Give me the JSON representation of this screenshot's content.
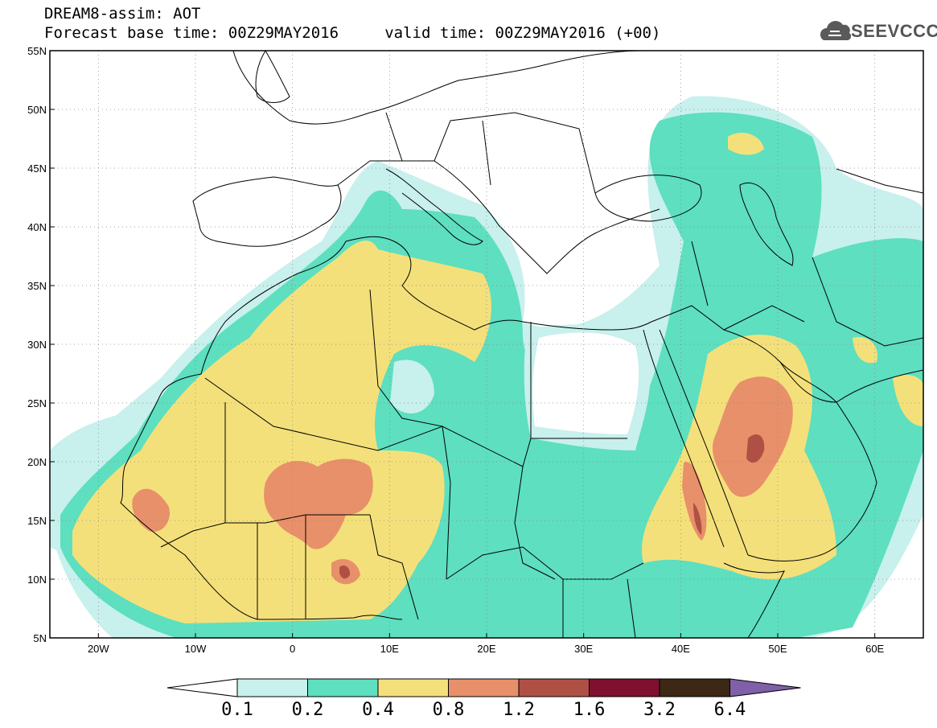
{
  "header": {
    "line1": "DREAM8-assim: AOT",
    "line2": "Forecast base time: 00Z29MAY2016     valid time: 00Z29MAY2016 (+00)"
  },
  "logo": {
    "text": "SEEVCCC",
    "icon": "cloud-icon",
    "color": "#5a5a5a"
  },
  "map": {
    "lon_range": [
      -25,
      65
    ],
    "lat_range": [
      5,
      55
    ],
    "lat_ticks": [
      "55N",
      "50N",
      "45N",
      "40N",
      "35N",
      "30N",
      "25N",
      "20N",
      "15N",
      "10N",
      "5N"
    ],
    "lon_ticks": [
      "20W",
      "10W",
      "0",
      "10E",
      "20E",
      "30E",
      "40E",
      "50E",
      "60E"
    ]
  },
  "colorbar": {
    "levels": [
      "0.1",
      "0.2",
      "0.4",
      "0.8",
      "1.2",
      "1.6",
      "3.2",
      "6.4"
    ],
    "colors": [
      "#c8f0ec",
      "#5ddfc0",
      "#f4e07a",
      "#e8906a",
      "#b05045",
      "#801030",
      "#3c2814"
    ],
    "under_color": "#ffffff",
    "over_color": "#8060a8"
  }
}
